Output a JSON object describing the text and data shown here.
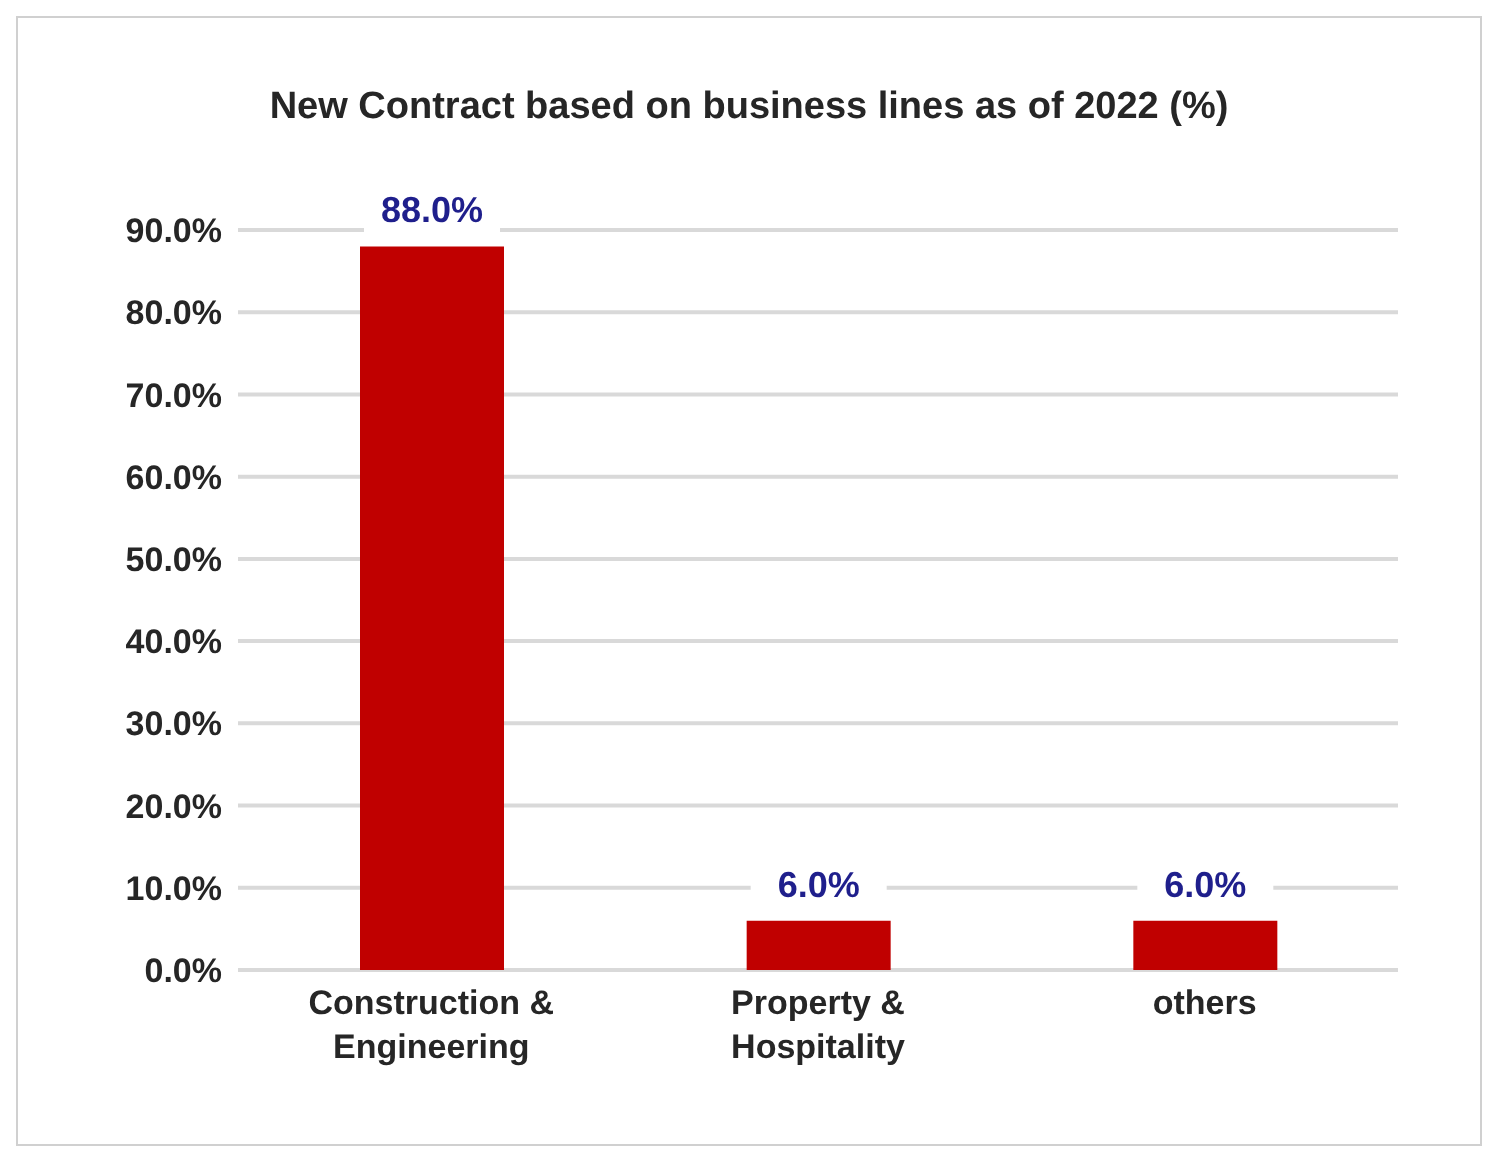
{
  "chart_data": {
    "type": "bar",
    "title": "New Contract based on business lines as of 2022 (%)",
    "categories": [
      "Construction & Engineering",
      "Property & Hospitality",
      "others"
    ],
    "values": [
      88,
      6,
      6
    ],
    "color": "#c00000",
    "value_labels": [
      "88.0%",
      "6.0%",
      "6.0%"
    ],
    "ylim": [
      0,
      90
    ],
    "yticks": [
      {
        "value": 0,
        "label": "0.0%"
      },
      {
        "value": 10,
        "label": "10.0%"
      },
      {
        "value": 20,
        "label": "20.0%"
      },
      {
        "value": 30,
        "label": "30.0%"
      },
      {
        "value": 40,
        "label": "40.0%"
      },
      {
        "value": 50,
        "label": "50.0%"
      },
      {
        "value": 60,
        "label": "60.0%"
      },
      {
        "value": 70,
        "label": "70.0%"
      },
      {
        "value": 80,
        "label": "80.0%"
      },
      {
        "value": 90,
        "label": "90.0%"
      }
    ],
    "grid": "y"
  }
}
